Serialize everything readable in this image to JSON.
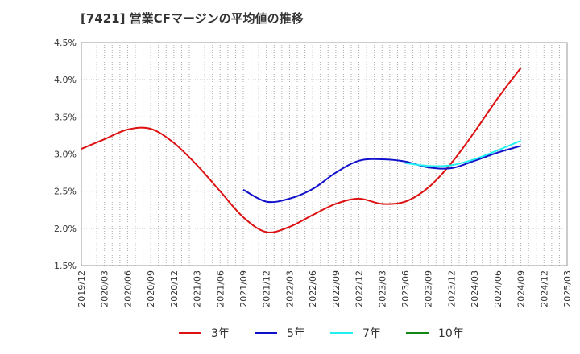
{
  "chart_data": {
    "type": "line",
    "title": "[7421]  営業CFマージンの平均値の推移",
    "xlabel": "",
    "ylabel": "",
    "ylim": [
      1.5,
      4.5
    ],
    "yticks": [
      "1.5%",
      "2.0%",
      "2.5%",
      "3.0%",
      "3.5%",
      "4.0%",
      "4.5%"
    ],
    "ytick_values": [
      1.5,
      2.0,
      2.5,
      3.0,
      3.5,
      4.0,
      4.5
    ],
    "x_categories": [
      "2019/12",
      "2020/03",
      "2020/06",
      "2020/09",
      "2020/12",
      "2021/03",
      "2021/06",
      "2021/09",
      "2021/12",
      "2022/03",
      "2022/06",
      "2022/09",
      "2022/12",
      "2023/03",
      "2023/06",
      "2023/09",
      "2023/12",
      "2024/03",
      "2024/06",
      "2024/09",
      "2024/12",
      "2025/03"
    ],
    "grid": true,
    "legend_position": "bottom",
    "series": [
      {
        "name": "3年",
        "color": "#dd1111",
        "x": [
          "2019/12",
          "2020/03",
          "2020/06",
          "2020/09",
          "2020/12",
          "2021/03",
          "2021/06",
          "2021/09",
          "2021/12",
          "2022/03",
          "2022/06",
          "2022/09",
          "2022/12",
          "2023/03",
          "2023/06",
          "2023/09",
          "2023/12",
          "2024/03",
          "2024/06",
          "2024/09"
        ],
        "values": [
          3.07,
          3.2,
          3.33,
          3.34,
          3.15,
          2.85,
          2.5,
          2.15,
          1.95,
          2.02,
          2.18,
          2.33,
          2.4,
          2.33,
          2.36,
          2.55,
          2.88,
          3.3,
          3.75,
          4.16
        ]
      },
      {
        "name": "5年",
        "color": "#1111cc",
        "x": [
          "2021/09",
          "2021/12",
          "2022/03",
          "2022/06",
          "2022/09",
          "2022/12",
          "2023/03",
          "2023/06",
          "2023/09",
          "2023/12",
          "2024/03",
          "2024/06",
          "2024/09"
        ],
        "values": [
          2.52,
          2.36,
          2.4,
          2.53,
          2.75,
          2.91,
          2.93,
          2.9,
          2.82,
          2.81,
          2.91,
          3.02,
          3.11
        ]
      },
      {
        "name": "7年",
        "color": "#22eeee",
        "x": [
          "2023/06",
          "2023/09",
          "2023/12",
          "2024/03",
          "2024/06",
          "2024/09"
        ],
        "values": [
          2.88,
          2.84,
          2.85,
          2.93,
          3.05,
          3.18
        ]
      },
      {
        "name": "10年",
        "color": "#118811",
        "x": [],
        "values": []
      }
    ]
  }
}
